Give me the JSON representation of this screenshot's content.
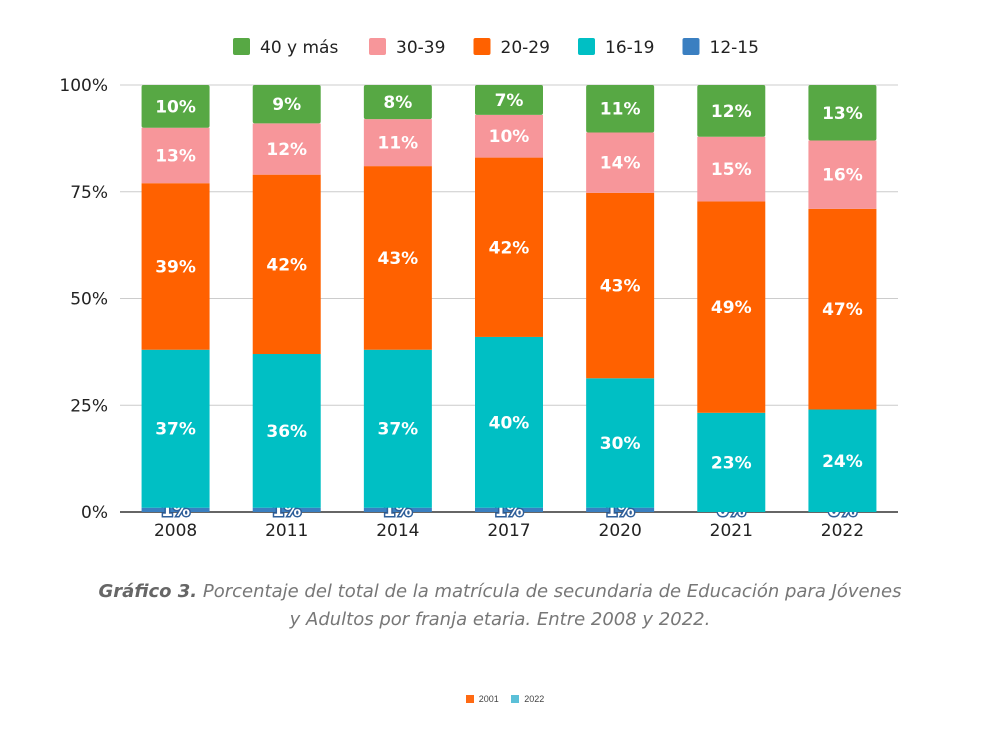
{
  "chart_data": {
    "type": "bar",
    "stacked": true,
    "percent": true,
    "categories": [
      "2008",
      "2011",
      "2014",
      "2017",
      "2020",
      "2021",
      "2022"
    ],
    "series": [
      {
        "name": "12-15",
        "color": "#3a7fc1",
        "values": [
          1,
          1,
          1,
          1,
          1,
          0,
          0
        ]
      },
      {
        "name": "16-19",
        "color": "#00bfc4",
        "values": [
          37,
          36,
          37,
          40,
          30,
          23,
          24
        ]
      },
      {
        "name": "20-29",
        "color": "#ff6100",
        "values": [
          39,
          42,
          43,
          42,
          43,
          49,
          47
        ]
      },
      {
        "name": "30-39",
        "color": "#f7969a",
        "values": [
          13,
          12,
          11,
          10,
          14,
          15,
          16
        ]
      },
      {
        "name": "40 y más",
        "color": "#57a844",
        "values": [
          10,
          9,
          8,
          7,
          11,
          12,
          13
        ]
      }
    ],
    "legend_order": [
      "40 y más",
      "30-39",
      "20-29",
      "16-19",
      "12-15"
    ],
    "legend_position": "top",
    "y_ticks": [
      "0%",
      "25%",
      "50%",
      "75%",
      "100%"
    ],
    "ylim": [
      0,
      100
    ],
    "grid": true
  },
  "caption": {
    "label": "Gráfico 3.",
    "text_line1": " Porcentaje del total de la matrícula de secundaria de Educación para Jóvenes",
    "text_line2": "y Adultos por franja etaria. Entre 2008 y 2022."
  },
  "mini_legend": [
    {
      "label": "2001",
      "color": "#ff6a13"
    },
    {
      "label": "2022",
      "color": "#5bc0d8"
    }
  ]
}
